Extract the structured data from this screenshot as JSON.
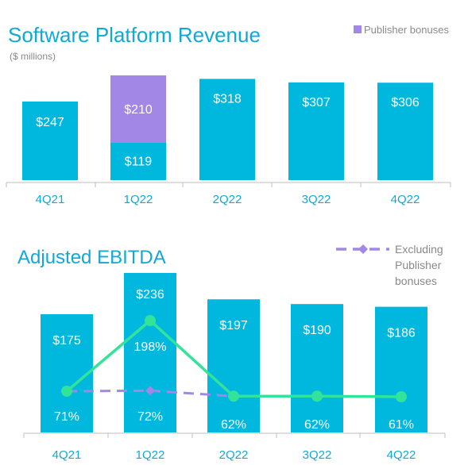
{
  "colors": {
    "bar": "#00B8DE",
    "publisher": "#A287E6",
    "title": "#11A9D3",
    "axis_label": "#11A9D3",
    "bar_label": "#FFFFFF",
    "line": "#34E39A",
    "dash": "#A287E6",
    "muted": "#8A8A8A",
    "axis": "#BFBFBF"
  },
  "chart_data": [
    {
      "type": "bar",
      "title": "Software Platform Revenue",
      "subtitle": "($ millions)",
      "categories": [
        "4Q21",
        "1Q22",
        "2Q22",
        "3Q22",
        "4Q22"
      ],
      "values": [
        247,
        329,
        318,
        307,
        306
      ],
      "series": [
        {
          "name": "",
          "values": [
            247,
            119,
            318,
            307,
            306
          ],
          "labels": [
            "$247",
            "$119",
            "$318",
            "$307",
            "$306"
          ]
        },
        {
          "name": "Publisher bonuses",
          "values": [
            0,
            210,
            0,
            0,
            0
          ],
          "labels": [
            "",
            "$210",
            "",
            "",
            ""
          ]
        }
      ],
      "legend": "top-right",
      "grid": false
    },
    {
      "type": "bar",
      "title": "Adjusted EBITDA",
      "categories": [
        "4Q21",
        "1Q22",
        "2Q22",
        "3Q22",
        "4Q22"
      ],
      "values": [
        175,
        236,
        197,
        190,
        186
      ],
      "value_labels": [
        "$175",
        "$236",
        "$197",
        "$190",
        "$186"
      ],
      "margin_line": {
        "values": [
          71,
          198,
          62,
          62,
          61
        ],
        "labels": [
          "71%",
          "198%",
          "62%",
          "62%",
          "61%"
        ]
      },
      "excluding_publisher_line": {
        "name": "Excluding Publisher bonuses",
        "legend_lines": [
          "Excluding",
          "Publisher",
          "bonuses"
        ],
        "values": [
          71,
          72,
          62,
          62,
          61
        ],
        "labels": [
          "",
          "72%",
          "",
          "",
          ""
        ]
      },
      "legend": "top-right",
      "grid": false
    }
  ]
}
